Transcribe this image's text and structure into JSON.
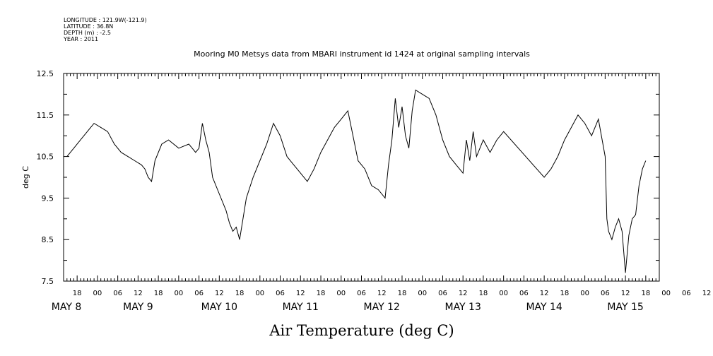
{
  "header": {
    "meta_lines": [
      "LONGITUDE : 121.9W(-121.9)",
      "LATITUDE : 36.8N",
      "DEPTH (m) : -2.5",
      "YEAR : 2011"
    ]
  },
  "chart_data": {
    "type": "line",
    "title": "Mooring M0 Metsys data from MBARI instrument id 1424 at original sampling intervals",
    "xlabel": "Air Temperature (deg C)",
    "ylabel": "deg C",
    "ylim": [
      7.5,
      12.5
    ],
    "xlim": [
      "2011-05-08T14:00",
      "2011-05-15T22:00"
    ],
    "y_ticks": [
      "7.5",
      "8.5",
      "9.5",
      "10.5",
      "11.5",
      "12.5"
    ],
    "x_hour_ticks": [
      "18",
      "00",
      "06",
      "12",
      "18",
      "00",
      "06",
      "12",
      "18",
      "00",
      "06",
      "12",
      "18",
      "00",
      "06",
      "12",
      "18",
      "00",
      "06",
      "12",
      "18",
      "00",
      "06",
      "12",
      "18",
      "00",
      "06",
      "12",
      "18",
      "00",
      "06",
      "12"
    ],
    "x_day_ticks": [
      {
        "label": "MAY  8",
        "date": "2011-05-08T12:00"
      },
      {
        "label": "MAY  9",
        "date": "2011-05-09T12:00"
      },
      {
        "label": "MAY 10",
        "date": "2011-05-10T12:00"
      },
      {
        "label": "MAY 11",
        "date": "2011-05-11T12:00"
      },
      {
        "label": "MAY 12",
        "date": "2011-05-12T12:00"
      },
      {
        "label": "MAY 13",
        "date": "2011-05-13T12:00"
      },
      {
        "label": "MAY 14",
        "date": "2011-05-14T12:00"
      },
      {
        "label": "MAY 15",
        "date": "2011-05-15T12:00"
      }
    ],
    "grid": false,
    "legend": "none",
    "line_color": "#000000",
    "series": [
      {
        "x": [
          "2011-05-08T15:00",
          "2011-05-08T17:00",
          "2011-05-08T19:00",
          "2011-05-08T21:00",
          "2011-05-08T23:00",
          "2011-05-09T01:00",
          "2011-05-09T03:00",
          "2011-05-09T05:00",
          "2011-05-09T07:00",
          "2011-05-09T09:00",
          "2011-05-09T11:00",
          "2011-05-09T13:00",
          "2011-05-09T14:00",
          "2011-05-09T15:00",
          "2011-05-09T16:00",
          "2011-05-09T17:00",
          "2011-05-09T19:00",
          "2011-05-09T21:00",
          "2011-05-10T00:00",
          "2011-05-10T03:00",
          "2011-05-10T04:00",
          "2011-05-10T05:00",
          "2011-05-10T06:00",
          "2011-05-10T07:00",
          "2011-05-10T08:00",
          "2011-05-10T09:00",
          "2011-05-10T10:00",
          "2011-05-10T12:00",
          "2011-05-10T14:00",
          "2011-05-10T15:00",
          "2011-05-10T16:00",
          "2011-05-10T17:00",
          "2011-05-10T18:00",
          "2011-05-10T20:00",
          "2011-05-10T22:00",
          "2011-05-11T00:00",
          "2011-05-11T02:00",
          "2011-05-11T04:00",
          "2011-05-11T06:00",
          "2011-05-11T08:00",
          "2011-05-11T10:00",
          "2011-05-11T12:00",
          "2011-05-11T14:00",
          "2011-05-11T16:00",
          "2011-05-11T18:00",
          "2011-05-11T20:00",
          "2011-05-11T22:00",
          "2011-05-12T00:00",
          "2011-05-12T02:00",
          "2011-05-12T03:00",
          "2011-05-12T05:00",
          "2011-05-12T07:00",
          "2011-05-12T09:00",
          "2011-05-12T11:00",
          "2011-05-12T13:00",
          "2011-05-12T14:00",
          "2011-05-12T15:00",
          "2011-05-12T16:00",
          "2011-05-12T17:00",
          "2011-05-12T18:00",
          "2011-05-12T19:00",
          "2011-05-12T20:00",
          "2011-05-12T21:00",
          "2011-05-12T22:00",
          "2011-05-13T00:00",
          "2011-05-13T02:00",
          "2011-05-13T04:00",
          "2011-05-13T06:00",
          "2011-05-13T08:00",
          "2011-05-13T10:00",
          "2011-05-13T12:00",
          "2011-05-13T13:00",
          "2011-05-13T14:00",
          "2011-05-13T15:00",
          "2011-05-13T16:00",
          "2011-05-13T18:00",
          "2011-05-13T20:00",
          "2011-05-13T22:00",
          "2011-05-14T00:00",
          "2011-05-14T12:00",
          "2011-05-14T14:00",
          "2011-05-14T16:00",
          "2011-05-14T18:00",
          "2011-05-14T20:00",
          "2011-05-14T22:00",
          "2011-05-15T00:00",
          "2011-05-15T02:00",
          "2011-05-15T04:00",
          "2011-05-15T06:00",
          "2011-05-15T06:30",
          "2011-05-15T07:00",
          "2011-05-15T08:00",
          "2011-05-15T09:00",
          "2011-05-15T10:00",
          "2011-05-15T11:00",
          "2011-05-15T12:00",
          "2011-05-15T13:00",
          "2011-05-15T14:00",
          "2011-05-15T15:00",
          "2011-05-15T16:00",
          "2011-05-15T17:00",
          "2011-05-15T18:00"
        ],
        "values": [
          10.5,
          10.7,
          10.9,
          11.1,
          11.3,
          11.2,
          11.1,
          10.8,
          10.6,
          10.5,
          10.4,
          10.3,
          10.2,
          10.0,
          9.9,
          10.4,
          10.8,
          10.9,
          10.7,
          10.8,
          10.7,
          10.6,
          10.7,
          11.3,
          10.9,
          10.6,
          10.0,
          9.6,
          9.2,
          8.9,
          8.7,
          8.8,
          8.5,
          9.5,
          10.0,
          10.4,
          10.8,
          11.3,
          11.0,
          10.5,
          10.3,
          10.1,
          9.9,
          10.2,
          10.6,
          10.9,
          11.2,
          11.4,
          11.6,
          11.2,
          10.4,
          10.2,
          9.8,
          9.7,
          9.5,
          10.3,
          10.9,
          11.9,
          11.2,
          11.7,
          11.0,
          10.7,
          11.6,
          12.1,
          12.0,
          11.9,
          11.5,
          10.9,
          10.5,
          10.3,
          10.1,
          10.9,
          10.4,
          11.1,
          10.5,
          10.9,
          10.6,
          10.9,
          11.1,
          10.0,
          10.2,
          10.5,
          10.9,
          11.2,
          11.5,
          11.3,
          11.0,
          11.4,
          10.5,
          9.0,
          8.7,
          8.5,
          8.8,
          9.0,
          8.7,
          7.7,
          8.6,
          9.0,
          9.1,
          9.8,
          10.2,
          10.4
        ]
      }
    ]
  }
}
